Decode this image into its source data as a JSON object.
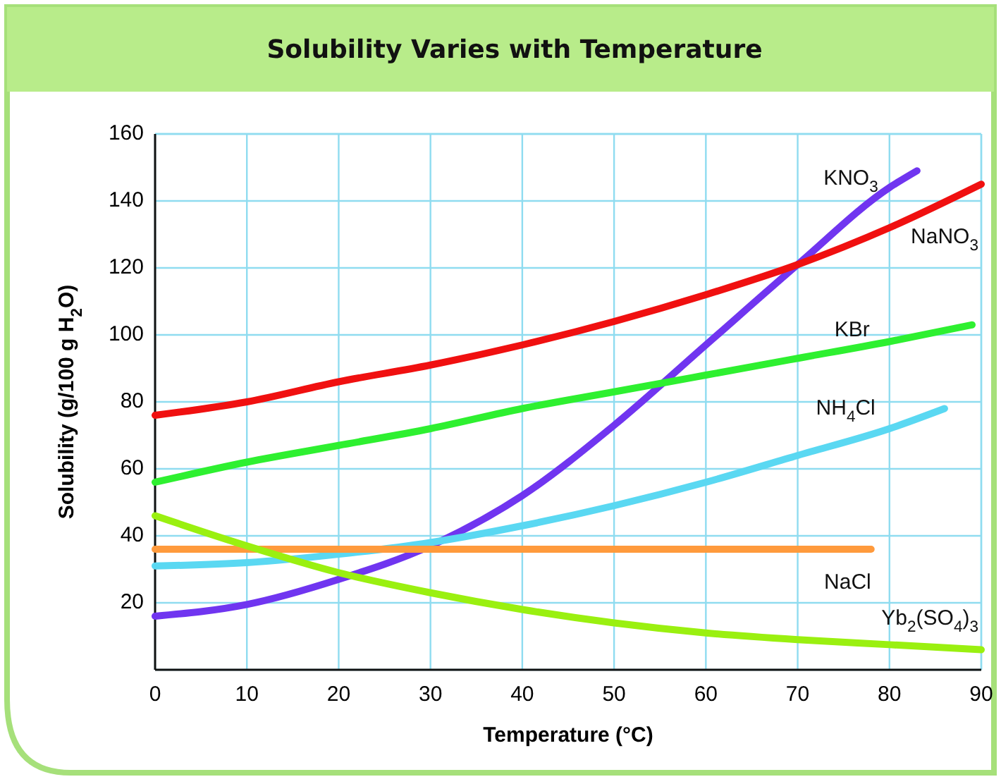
{
  "chart_data": {
    "type": "line",
    "title": "Solubility Varies with Temperature",
    "xlabel": "Temperature (°C)",
    "ylabel": "Solubility (g/100 g H$_{2}$O)",
    "xlim": [
      0,
      90
    ],
    "xticks": [
      0,
      10,
      20,
      30,
      40,
      50,
      60,
      70,
      80,
      90
    ],
    "ylim": [
      0,
      160
    ],
    "yticks": [
      {
        "value": 0,
        "label": null
      },
      20,
      40,
      60,
      80,
      100,
      120,
      140,
      160
    ],
    "grid": true,
    "marker": "none",
    "line_style": "solid",
    "series": [
      {
        "name": "KNO$_{3}$",
        "color": "#7035f0",
        "x": [
          0,
          10,
          20,
          30,
          40,
          50,
          60,
          70,
          80,
          83
        ],
        "values": [
          16,
          19.5,
          27,
          37,
          52,
          73,
          97,
          121,
          144,
          149
        ]
      },
      {
        "name": "NaNO$_{3}$",
        "color": "#f01010",
        "x": [
          0,
          10,
          20,
          30,
          40,
          50,
          60,
          70,
          80,
          90
        ],
        "values": [
          76,
          80,
          86,
          91,
          97,
          104,
          112,
          121,
          132,
          145
        ]
      },
      {
        "name": "KBr",
        "color": "#2ef030",
        "x": [
          0,
          10,
          20,
          30,
          40,
          50,
          60,
          70,
          80,
          89
        ],
        "values": [
          56,
          62,
          67,
          72,
          78,
          83,
          88,
          93,
          98,
          103
        ]
      },
      {
        "name": "NH$_{4}$Cl",
        "color": "#5ad8f2",
        "x": [
          0,
          10,
          20,
          30,
          40,
          50,
          60,
          70,
          80,
          86
        ],
        "values": [
          31,
          32,
          34.5,
          38,
          43,
          49,
          56,
          64,
          72,
          78
        ]
      },
      {
        "name": "NaCl",
        "color": "#ff9a3c",
        "x": [
          0,
          78
        ],
        "values": [
          36,
          36
        ]
      },
      {
        "name": "Yb$_{2}$(SO$_{4}$)$_{3}$",
        "color": "#9af010",
        "x": [
          0,
          10,
          20,
          30,
          40,
          50,
          60,
          70,
          80,
          90
        ],
        "values": [
          46,
          37,
          29,
          23,
          18,
          14,
          11,
          9,
          7.5,
          6
        ]
      }
    ]
  }
}
